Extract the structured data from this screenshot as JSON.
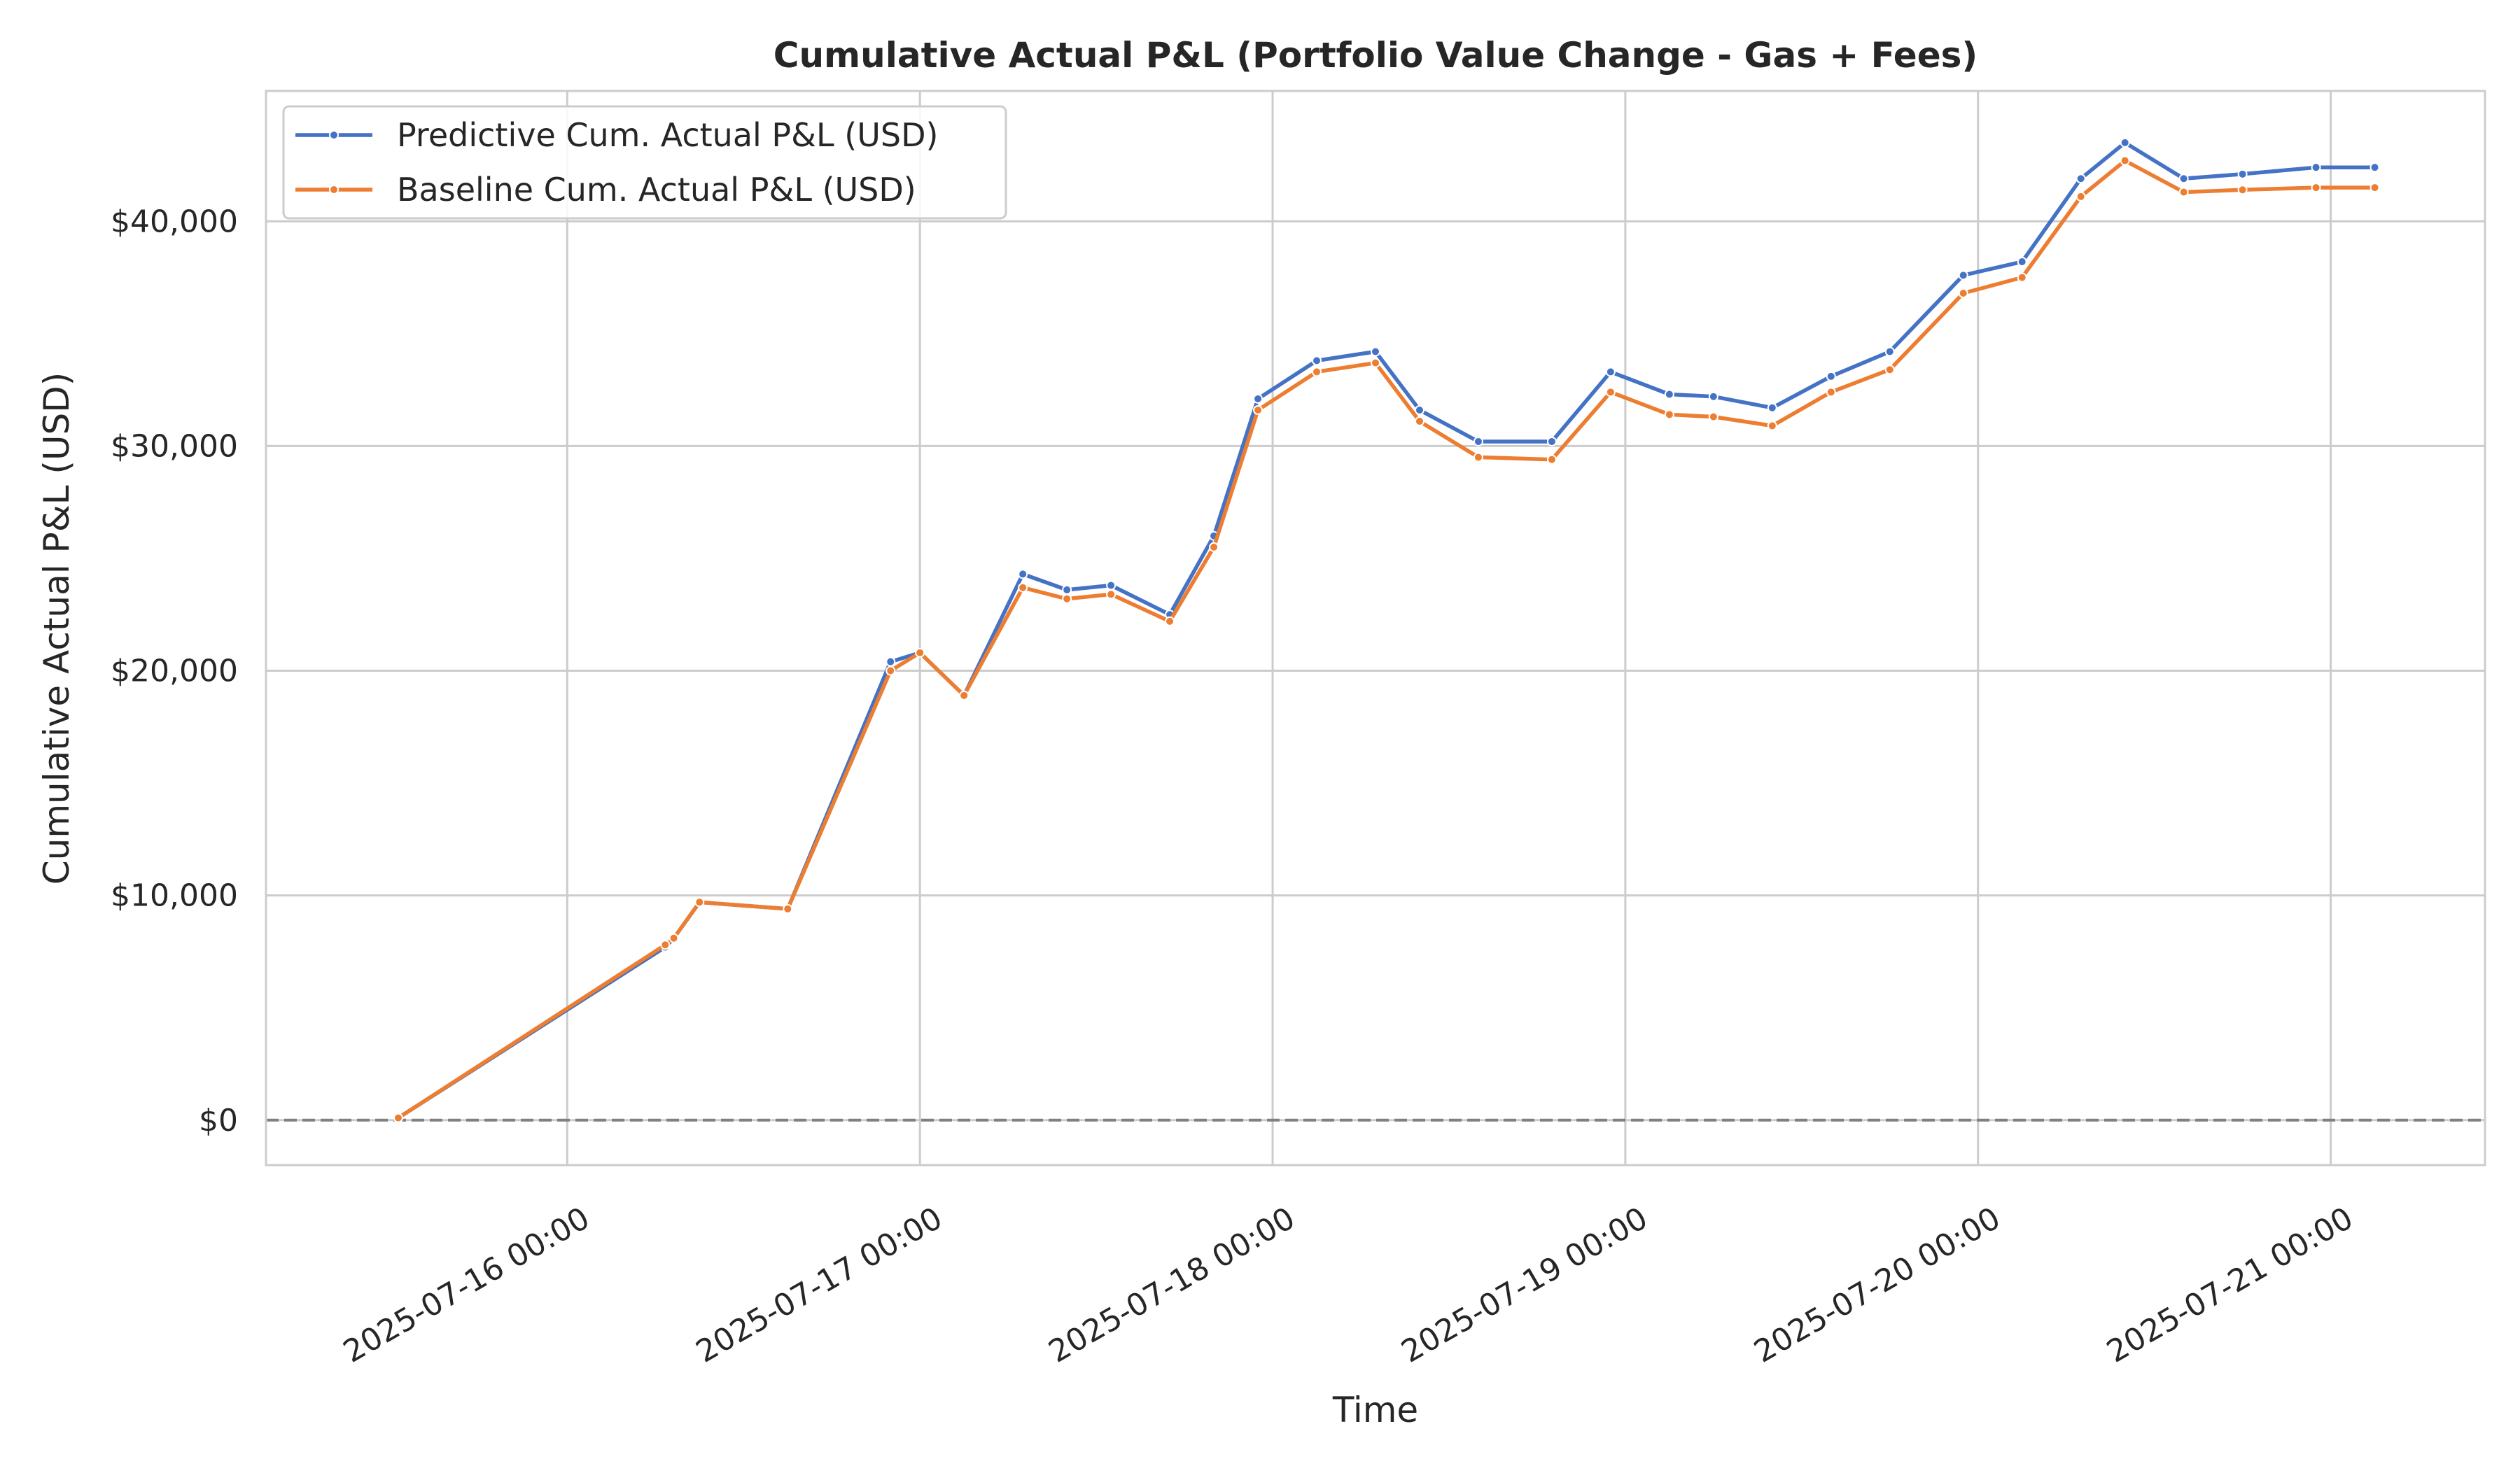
{
  "chart_data": {
    "type": "line",
    "title": "Cumulative Actual P&L (Portfolio Value Change - Gas + Fees)",
    "xlabel": "Time",
    "ylabel": "Cumulative Actual P&L (USD)",
    "xlim": [
      "2025-07-15 03:30",
      "2025-07-21 10:30"
    ],
    "ylim": [
      -2000,
      45800
    ],
    "x_ticks": [
      "2025-07-16 00:00",
      "2025-07-17 00:00",
      "2025-07-18 00:00",
      "2025-07-19 00:00",
      "2025-07-20 00:00",
      "2025-07-21 00:00"
    ],
    "y_ticks": [
      0,
      10000,
      20000,
      30000,
      40000
    ],
    "y_tick_labels": [
      "$0",
      "$10,000",
      "$20,000",
      "$30,000",
      "$40,000"
    ],
    "reference_line": {
      "y": 0,
      "style": "dashed",
      "color": "#808080"
    },
    "grid": true,
    "legend_position": "top-left",
    "x": [
      "2025-07-15 12:30",
      "2025-07-16 06:40",
      "2025-07-16 07:15",
      "2025-07-16 09:00",
      "2025-07-16 15:00",
      "2025-07-16 22:00",
      "2025-07-17 00:00",
      "2025-07-17 03:00",
      "2025-07-17 07:00",
      "2025-07-17 10:00",
      "2025-07-17 13:00",
      "2025-07-17 17:00",
      "2025-07-17 20:00",
      "2025-07-17 23:00",
      "2025-07-18 03:00",
      "2025-07-18 07:00",
      "2025-07-18 10:00",
      "2025-07-18 14:00",
      "2025-07-18 19:00",
      "2025-07-18 23:00",
      "2025-07-19 03:00",
      "2025-07-19 06:00",
      "2025-07-19 10:00",
      "2025-07-19 14:00",
      "2025-07-19 18:00",
      "2025-07-19 23:00",
      "2025-07-20 03:00",
      "2025-07-20 07:00",
      "2025-07-20 10:00",
      "2025-07-20 14:00",
      "2025-07-20 18:00",
      "2025-07-20 23:00",
      "2025-07-21 03:00"
    ],
    "series": [
      {
        "name": "Predictive Cum. Actual P&L (USD)",
        "color": "#4472c4",
        "values": [
          100,
          7700,
          8100,
          9700,
          9400,
          20400,
          20800,
          18900,
          24300,
          23600,
          23800,
          22500,
          26000,
          32100,
          33800,
          34200,
          31600,
          30200,
          30200,
          33300,
          32300,
          32200,
          31700,
          33100,
          34200,
          37600,
          38200,
          41900,
          43500,
          41900,
          42100,
          42400,
          42400
        ]
      },
      {
        "name": "Baseline Cum. Actual P&L (USD)",
        "color": "#ed7d31",
        "values": [
          100,
          7800,
          8100,
          9700,
          9400,
          20000,
          20800,
          18900,
          23700,
          23200,
          23400,
          22200,
          25500,
          31600,
          33300,
          33700,
          31100,
          29500,
          29400,
          32400,
          31400,
          31300,
          30900,
          32400,
          33400,
          36800,
          37500,
          41100,
          42700,
          41300,
          41400,
          41500,
          41500
        ]
      }
    ]
  }
}
